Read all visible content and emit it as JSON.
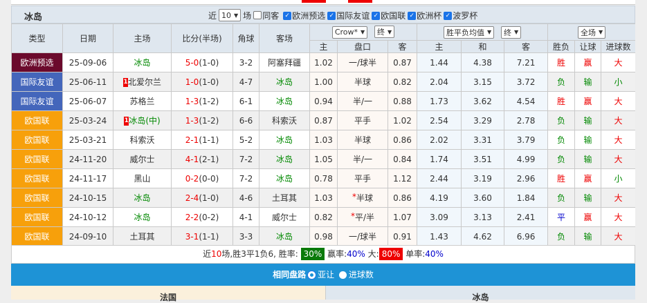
{
  "team": "冰岛",
  "filters": {
    "near_label": "近",
    "count": "10",
    "games_label": "场",
    "same_label": "同客",
    "leagues": [
      {
        "label": "欧洲预选",
        "checked": true
      },
      {
        "label": "国际友谊",
        "checked": true
      },
      {
        "label": "欧国联",
        "checked": true
      },
      {
        "label": "欧洲杯",
        "checked": true
      },
      {
        "label": "波罗杯",
        "checked": true
      }
    ]
  },
  "headers": {
    "type": "类型",
    "date": "日期",
    "home": "主场",
    "score": "比分(半场)",
    "corner": "角球",
    "away": "客场",
    "company": "Crow*",
    "final1": "终",
    "odds_type": "胜平负均值",
    "final2": "终",
    "scope": "全场",
    "sub": [
      "主",
      "盘口",
      "客",
      "主",
      "和",
      "客",
      "胜负",
      "让球",
      "进球数"
    ]
  },
  "colors": {
    "欧洲预选": "#6b0a2c",
    "国际友谊": "#4466bb",
    "欧国联": "#f7a00b"
  },
  "rows": [
    {
      "type": "欧洲预选",
      "date": "25-09-06",
      "home": "冰岛",
      "home_badge": "",
      "score": "5-0",
      "half": "(1-0)",
      "corner": "3-2",
      "away": "阿塞拜疆",
      "ah_h": "1.02",
      "line": "一/球半",
      "ah_a": "0.87",
      "o1": "1.44",
      "ox": "4.38",
      "o2": "7.21",
      "wdl": "胜",
      "hc": "赢",
      "ou": "大"
    },
    {
      "type": "国际友谊",
      "date": "25-06-11",
      "home": "北爱尔兰",
      "home_badge": "1",
      "score": "1-0",
      "half": "(1-0)",
      "corner": "4-7",
      "away": "冰岛",
      "ah_h": "1.00",
      "line": "半球",
      "ah_a": "0.82",
      "o1": "2.04",
      "ox": "3.15",
      "o2": "3.72",
      "wdl": "负",
      "hc": "输",
      "ou": "小"
    },
    {
      "type": "国际友谊",
      "date": "25-06-07",
      "home": "苏格兰",
      "home_badge": "",
      "score": "1-3",
      "half": "(1-2)",
      "corner": "6-1",
      "away": "冰岛",
      "ah_h": "0.94",
      "line": "半/一",
      "ah_a": "0.88",
      "o1": "1.73",
      "ox": "3.62",
      "o2": "4.54",
      "wdl": "胜",
      "hc": "赢",
      "ou": "大"
    },
    {
      "type": "欧国联",
      "date": "25-03-24",
      "home": "冰岛(中)",
      "home_badge": "1",
      "score": "1-3",
      "half": "(1-2)",
      "corner": "6-6",
      "away": "科索沃",
      "ah_h": "0.87",
      "line": "平手",
      "ah_a": "1.02",
      "o1": "2.54",
      "ox": "3.29",
      "o2": "2.78",
      "wdl": "负",
      "hc": "输",
      "ou": "大"
    },
    {
      "type": "欧国联",
      "date": "25-03-21",
      "home": "科索沃",
      "home_badge": "",
      "score": "2-1",
      "half": "(1-1)",
      "corner": "5-2",
      "away": "冰岛",
      "ah_h": "1.03",
      "line": "半球",
      "ah_a": "0.86",
      "o1": "2.02",
      "ox": "3.31",
      "o2": "3.79",
      "wdl": "负",
      "hc": "输",
      "ou": "大"
    },
    {
      "type": "欧国联",
      "date": "24-11-20",
      "home": "威尔士",
      "home_badge": "",
      "score": "4-1",
      "half": "(2-1)",
      "corner": "7-2",
      "away": "冰岛",
      "ah_h": "1.05",
      "line": "半/一",
      "ah_a": "0.84",
      "o1": "1.74",
      "ox": "3.51",
      "o2": "4.99",
      "wdl": "负",
      "hc": "输",
      "ou": "大"
    },
    {
      "type": "欧国联",
      "date": "24-11-17",
      "home": "黑山",
      "home_badge": "",
      "score": "0-2",
      "half": "(0-0)",
      "corner": "7-2",
      "away": "冰岛",
      "ah_h": "0.78",
      "line": "平手",
      "ah_a": "1.12",
      "o1": "2.44",
      "ox": "3.19",
      "o2": "2.96",
      "wdl": "胜",
      "hc": "赢",
      "ou": "小"
    },
    {
      "type": "欧国联",
      "date": "24-10-15",
      "home": "冰岛",
      "home_badge": "",
      "score": "2-4",
      "half": "(1-0)",
      "corner": "4-6",
      "away": "土耳其",
      "ah_h": "1.03",
      "line": "*半球",
      "ah_a": "0.86",
      "o1": "4.19",
      "ox": "3.60",
      "o2": "1.84",
      "wdl": "负",
      "hc": "输",
      "ou": "大"
    },
    {
      "type": "欧国联",
      "date": "24-10-12",
      "home": "冰岛",
      "home_badge": "",
      "score": "2-2",
      "half": "(0-2)",
      "corner": "4-1",
      "away": "威尔士",
      "ah_h": "0.82",
      "line": "*平/半",
      "ah_a": "1.07",
      "o1": "3.09",
      "ox": "3.13",
      "o2": "2.41",
      "wdl": "平",
      "hc": "赢",
      "ou": "大"
    },
    {
      "type": "欧国联",
      "date": "24-09-10",
      "home": "土耳其",
      "home_badge": "",
      "score": "3-1",
      "half": "(1-1)",
      "corner": "3-3",
      "away": "冰岛",
      "ah_h": "0.98",
      "line": "一/球半",
      "ah_a": "0.91",
      "o1": "1.43",
      "ox": "4.62",
      "o2": "6.96",
      "wdl": "负",
      "hc": "输",
      "ou": "大"
    }
  ],
  "summary": {
    "near": "近",
    "n": "10",
    "record": "场,胜3平1负6, 胜率:",
    "win_rate": "30%",
    "hc_label": "赢率:",
    "hc_rate": "40%",
    "big_label": "大:",
    "big_rate": "80%",
    "odd_label": "单率:",
    "odd_rate": "40%"
  },
  "same_handicap": {
    "title": "相同盘路",
    "opt1": "亚让",
    "opt2": "进球数"
  },
  "bottom": {
    "left": "法国",
    "right": "冰岛"
  }
}
